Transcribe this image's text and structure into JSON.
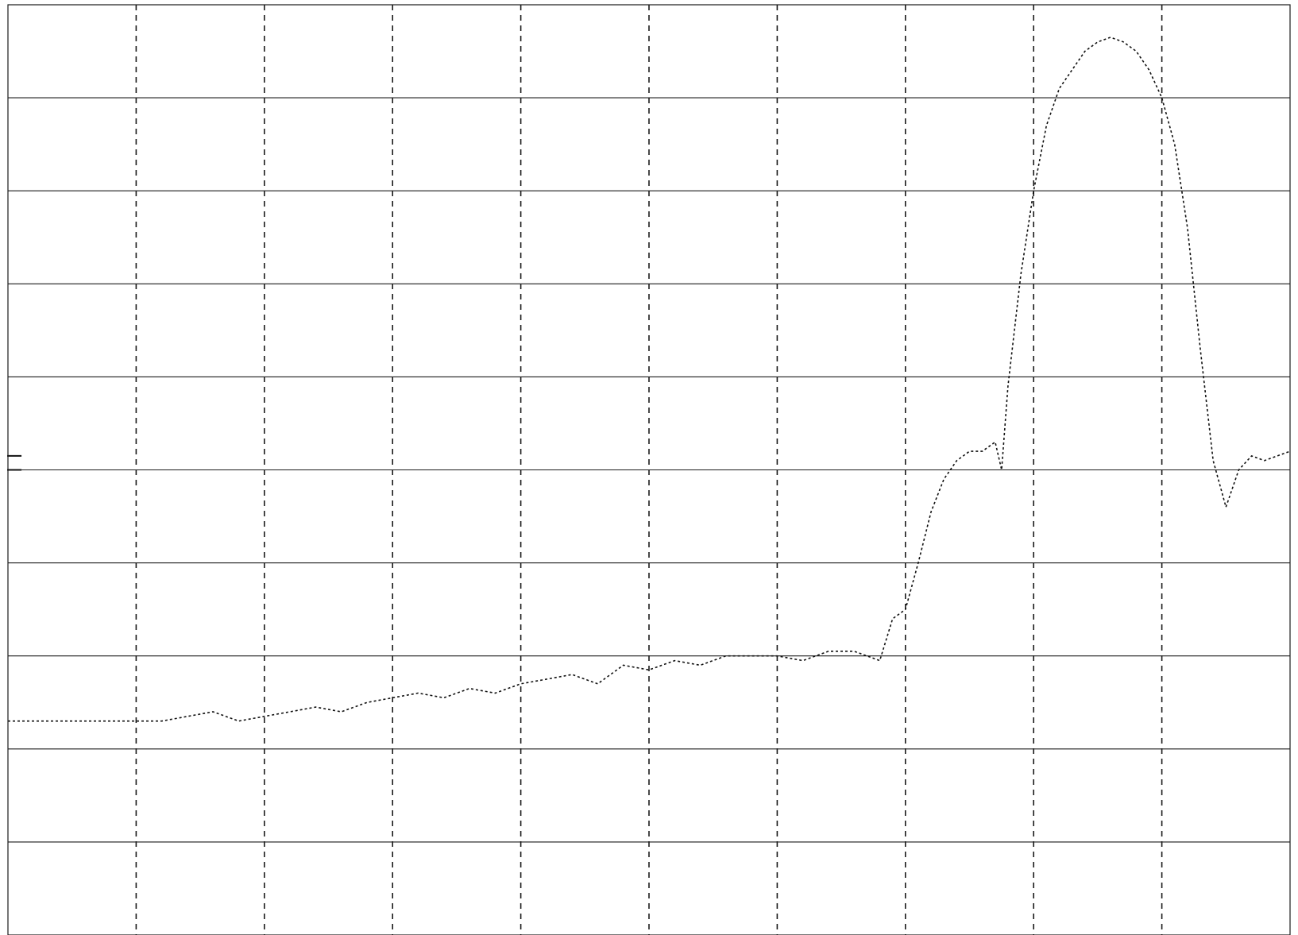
{
  "chart_data": {
    "type": "line",
    "xlim": [
      0,
      10
    ],
    "ylim": [
      0,
      10
    ],
    "x_divisions": 10,
    "y_divisions": 10,
    "grid": true,
    "grid_vertical_style": "dashed",
    "grid_horizontal_style": "solid",
    "axes_labels_visible": false,
    "trace_color": "#111111",
    "grid_color": "#1a1a1a",
    "background_color": "#ffffff",
    "series": [
      {
        "x": [
          0.0,
          0.2,
          0.4,
          0.6,
          0.8,
          1.0,
          1.2,
          1.4,
          1.6,
          1.8,
          2.0,
          2.2,
          2.4,
          2.6,
          2.8,
          3.0,
          3.2,
          3.4,
          3.6,
          3.8,
          4.0,
          4.2,
          4.4,
          4.6,
          4.8,
          5.0,
          5.2,
          5.4,
          5.6,
          5.8,
          6.0,
          6.2,
          6.4,
          6.6,
          6.8,
          6.9,
          7.0,
          7.1,
          7.2,
          7.3,
          7.4,
          7.5,
          7.6,
          7.7,
          7.75,
          7.8,
          7.9,
          8.0,
          8.1,
          8.2,
          8.3,
          8.4,
          8.5,
          8.6,
          8.7,
          8.8,
          8.9,
          9.0,
          9.1,
          9.2,
          9.3,
          9.4,
          9.5,
          9.6,
          9.7,
          9.8,
          9.9,
          10.0
        ],
        "y": [
          2.3,
          2.3,
          2.3,
          2.3,
          2.3,
          2.3,
          2.3,
          2.35,
          2.4,
          2.3,
          2.35,
          2.4,
          2.45,
          2.4,
          2.5,
          2.55,
          2.6,
          2.55,
          2.65,
          2.6,
          2.7,
          2.75,
          2.8,
          2.7,
          2.9,
          2.85,
          2.95,
          2.9,
          3.0,
          3.0,
          3.0,
          2.95,
          3.05,
          3.05,
          2.95,
          3.4,
          3.5,
          4.0,
          4.55,
          4.9,
          5.1,
          5.2,
          5.2,
          5.3,
          5.0,
          5.9,
          7.1,
          8.0,
          8.7,
          9.1,
          9.3,
          9.5,
          9.6,
          9.65,
          9.6,
          9.5,
          9.3,
          9.0,
          8.5,
          7.6,
          6.3,
          5.1,
          4.6,
          5.0,
          5.15,
          5.1,
          5.15,
          5.2
        ]
      }
    ],
    "markers": [
      {
        "x": 0.05,
        "y": 5.0
      },
      {
        "x": 0.05,
        "y": 5.15
      }
    ]
  }
}
